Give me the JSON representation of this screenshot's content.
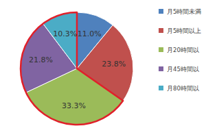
{
  "chart_data": {
    "type": "pie",
    "categories": [
      "月5時間未満",
      "月5時間以上",
      "月20時間以",
      "月45時間以",
      "月80時間以"
    ],
    "values": [
      11.0,
      23.8,
      33.3,
      21.8,
      10.3
    ],
    "value_labels": [
      "11.0%",
      "23.8%",
      "33.3%",
      "21.8%",
      "10.3%"
    ],
    "colors": [
      "#4f81bd",
      "#c0504d",
      "#9bbb59",
      "#8064a2",
      "#4bacc6"
    ],
    "data_labels": true,
    "legend": "right"
  }
}
